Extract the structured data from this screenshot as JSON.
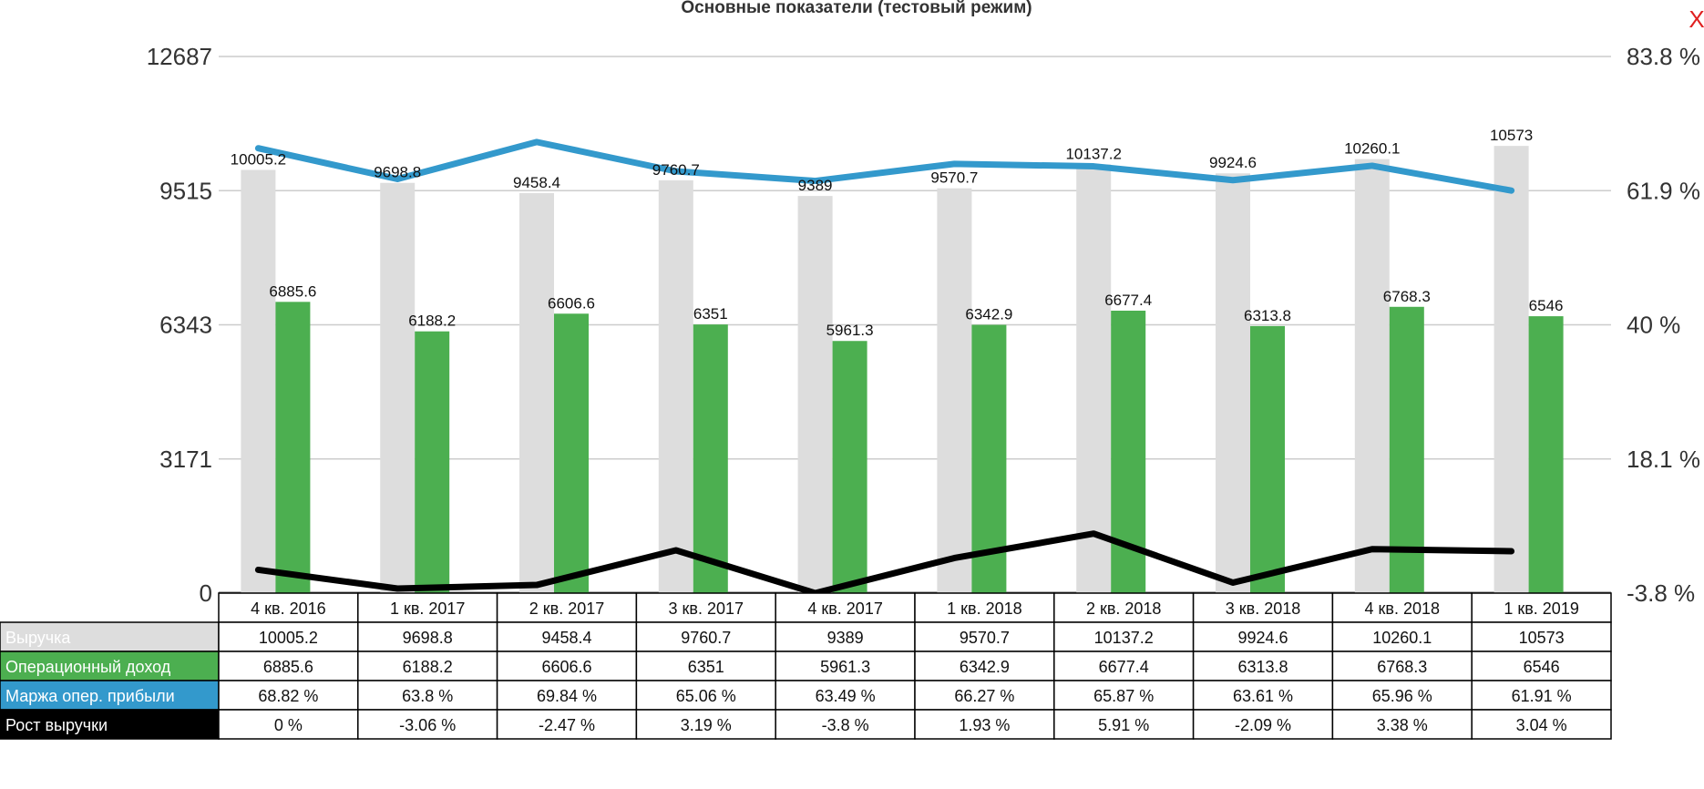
{
  "header": {
    "title": "Основные показатели (тестовый режим)",
    "close_label": "X"
  },
  "chart_data": {
    "type": "bar",
    "title": "Основные показатели (тестовый режим)",
    "categories": [
      "4 кв. 2016",
      "1 кв. 2017",
      "2 кв. 2017",
      "3 кв. 2017",
      "4 кв. 2017",
      "1 кв. 2018",
      "2 кв. 2018",
      "3 кв. 2018",
      "4 кв. 2018",
      "1 кв. 2019"
    ],
    "y_left": {
      "ticks": [
        "0",
        "3171",
        "6343",
        "9515",
        "12687"
      ],
      "range": [
        0,
        12687
      ]
    },
    "y_right": {
      "ticks": [
        "-3.8 %",
        "18.1 %",
        "40 %",
        "61.9 %",
        "83.8 %"
      ],
      "range": [
        -3.8,
        83.8
      ]
    },
    "grid": true,
    "series": [
      {
        "name": "Выручка",
        "kind": "bar",
        "axis": "left",
        "color": "#dddddd",
        "label_color": "#ffffff",
        "values": [
          10005.2,
          9698.8,
          9458.4,
          9760.7,
          9389,
          9570.7,
          10137.2,
          9924.6,
          10260.1,
          10573
        ],
        "labels": [
          "10005.2",
          "9698.8",
          "9458.4",
          "9760.7",
          "9389",
          "9570.7",
          "10137.2",
          "9924.6",
          "10260.1",
          "10573"
        ]
      },
      {
        "name": "Операционный доход",
        "kind": "bar",
        "axis": "left",
        "color": "#4caf50",
        "label_color": "#ffffff",
        "values": [
          6885.6,
          6188.2,
          6606.6,
          6351,
          5961.3,
          6342.9,
          6677.4,
          6313.8,
          6768.3,
          6546
        ],
        "labels": [
          "6885.6",
          "6188.2",
          "6606.6",
          "6351",
          "5961.3",
          "6342.9",
          "6677.4",
          "6313.8",
          "6768.3",
          "6546"
        ]
      },
      {
        "name": "Маржа опер. прибыли",
        "kind": "line",
        "axis": "right",
        "color": "#3399cc",
        "label_color": "#ffffff",
        "values": [
          68.82,
          63.8,
          69.84,
          65.06,
          63.49,
          66.27,
          65.87,
          63.61,
          65.96,
          61.91
        ],
        "labels": [
          "68.82 %",
          "63.8 %",
          "69.84 %",
          "65.06 %",
          "63.49 %",
          "66.27 %",
          "65.87 %",
          "63.61 %",
          "65.96 %",
          "61.91 %"
        ]
      },
      {
        "name": "Рост выручки",
        "kind": "line",
        "axis": "right",
        "color": "#000000",
        "label_color": "#ffffff",
        "values": [
          0,
          -3.06,
          -2.47,
          3.19,
          -3.8,
          1.93,
          5.91,
          -2.09,
          3.38,
          3.04
        ],
        "labels": [
          "0 %",
          "-3.06 %",
          "-2.47 %",
          "3.19 %",
          "-3.8 %",
          "1.93 %",
          "5.91 %",
          "-2.09 %",
          "3.38 %",
          "3.04 %"
        ]
      }
    ]
  }
}
